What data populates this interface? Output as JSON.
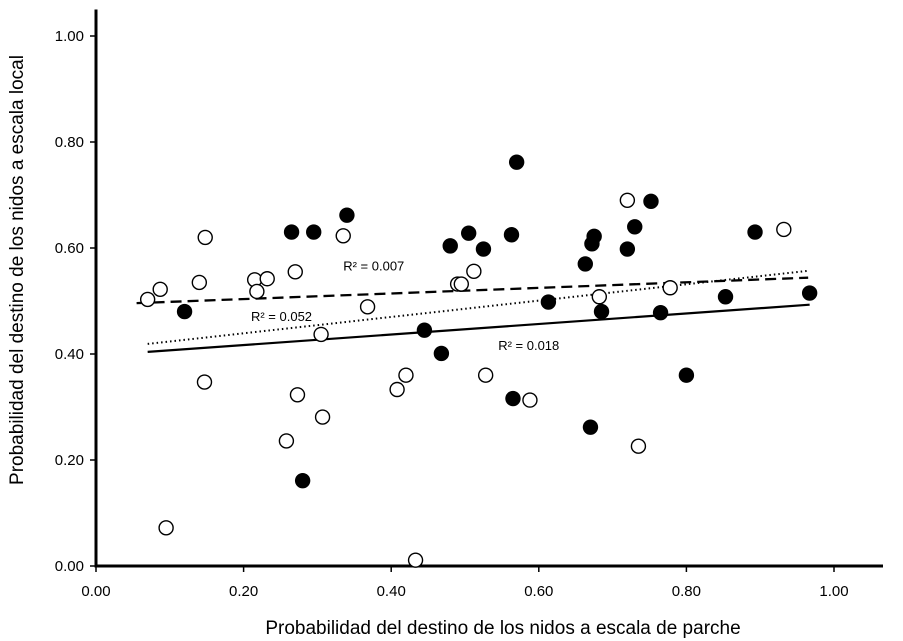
{
  "chart_data": {
    "type": "scatter",
    "title": "",
    "xlabel": "Probabilidad del destino de los nidos a escala de parche",
    "ylabel": "Probabilidad del destino de los nidos a escala local",
    "xlim": [
      0,
      1.1
    ],
    "ylim": [
      0,
      1.05
    ],
    "xticks": [
      "0.00",
      "0.20",
      "0.40",
      "0.60",
      "0.80",
      "1.00"
    ],
    "yticks": [
      "0.00",
      "0.20",
      "0.40",
      "0.60",
      "0.80",
      "1.00"
    ],
    "grid": false,
    "legend": "none",
    "series": [
      {
        "marker": "filled-circle",
        "color": "#000000",
        "points": [
          [
            0.12,
            0.48
          ],
          [
            0.265,
            0.63
          ],
          [
            0.295,
            0.63
          ],
          [
            0.34,
            0.662
          ],
          [
            0.28,
            0.161
          ],
          [
            0.445,
            0.445
          ],
          [
            0.468,
            0.401
          ],
          [
            0.48,
            0.604
          ],
          [
            0.505,
            0.628
          ],
          [
            0.525,
            0.598
          ],
          [
            0.563,
            0.625
          ],
          [
            0.57,
            0.762
          ],
          [
            0.565,
            0.316
          ],
          [
            0.613,
            0.498
          ],
          [
            0.663,
            0.57
          ],
          [
            0.67,
            0.262
          ],
          [
            0.672,
            0.608
          ],
          [
            0.675,
            0.622
          ],
          [
            0.685,
            0.48
          ],
          [
            0.72,
            0.598
          ],
          [
            0.73,
            0.64
          ],
          [
            0.752,
            0.688
          ],
          [
            0.765,
            0.478
          ],
          [
            0.8,
            0.36
          ],
          [
            0.853,
            0.508
          ],
          [
            0.893,
            0.63
          ],
          [
            0.967,
            0.515
          ]
        ]
      },
      {
        "marker": "open-circle",
        "color": "#000000",
        "points": [
          [
            0.07,
            0.503
          ],
          [
            0.087,
            0.522
          ],
          [
            0.095,
            0.072
          ],
          [
            0.14,
            0.535
          ],
          [
            0.147,
            0.347
          ],
          [
            0.148,
            0.62
          ],
          [
            0.215,
            0.54
          ],
          [
            0.218,
            0.518
          ],
          [
            0.232,
            0.542
          ],
          [
            0.258,
            0.236
          ],
          [
            0.27,
            0.555
          ],
          [
            0.273,
            0.323
          ],
          [
            0.305,
            0.437
          ],
          [
            0.307,
            0.281
          ],
          [
            0.335,
            0.623
          ],
          [
            0.368,
            0.489
          ],
          [
            0.408,
            0.333
          ],
          [
            0.42,
            0.36
          ],
          [
            0.433,
            0.011
          ],
          [
            0.49,
            0.532
          ],
          [
            0.495,
            0.532
          ],
          [
            0.512,
            0.556
          ],
          [
            0.528,
            0.36
          ],
          [
            0.588,
            0.313
          ],
          [
            0.682,
            0.508
          ],
          [
            0.72,
            0.69
          ],
          [
            0.735,
            0.226
          ],
          [
            0.778,
            0.525
          ],
          [
            0.932,
            0.635
          ]
        ]
      }
    ],
    "trendlines": [
      {
        "style": "dashed",
        "x": [
          0.055,
          0.965
        ],
        "y": [
          0.496,
          0.544
        ],
        "label": "R² = 0.007"
      },
      {
        "style": "dotted",
        "x": [
          0.07,
          0.965
        ],
        "y": [
          0.419,
          0.557
        ],
        "label": "R² = 0.052"
      },
      {
        "style": "solid",
        "x": [
          0.07,
          0.967
        ],
        "y": [
          0.404,
          0.493
        ],
        "label": "R² = 0.018"
      }
    ]
  }
}
